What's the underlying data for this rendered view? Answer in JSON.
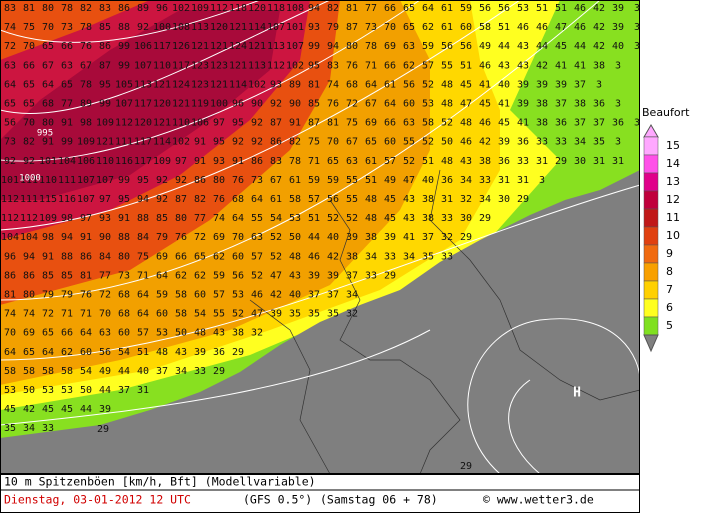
{
  "grid": {
    "rows": [
      [
        83,
        81,
        80,
        78,
        82,
        83,
        86,
        89,
        96,
        102,
        109,
        112,
        118,
        120,
        118,
        108,
        94,
        82,
        81,
        77,
        66,
        65,
        64,
        61,
        59,
        56,
        56,
        53,
        51,
        51,
        46,
        42,
        39,
        3
      ],
      [
        74,
        75,
        70,
        73,
        78,
        85,
        88,
        92,
        100,
        108,
        113,
        120,
        121,
        114,
        107,
        101,
        93,
        79,
        87,
        73,
        70,
        65,
        62,
        61,
        60,
        58,
        51,
        46,
        46,
        47,
        46,
        42,
        39,
        3
      ],
      [
        72,
        70,
        65,
        66,
        76,
        86,
        99,
        106,
        117,
        126,
        121,
        121,
        124,
        121,
        113,
        107,
        99,
        94,
        80,
        78,
        69,
        63,
        59,
        56,
        56,
        49,
        44,
        43,
        44,
        45,
        44,
        42,
        40,
        3
      ],
      [
        63,
        66,
        67,
        63,
        67,
        87,
        99,
        107,
        110,
        117,
        123,
        123,
        121,
        113,
        112,
        102,
        95,
        83,
        76,
        71,
        66,
        62,
        57,
        55,
        51,
        46,
        43,
        43,
        42,
        41,
        41,
        38,
        3
      ],
      [
        64,
        65,
        64,
        65,
        78,
        95,
        105,
        113,
        121,
        124,
        123,
        121,
        114,
        102,
        93,
        89,
        81,
        74,
        68,
        64,
        61,
        56,
        52,
        48,
        45,
        41,
        40,
        39,
        39,
        39,
        37,
        3
      ],
      [
        65,
        65,
        68,
        77,
        89,
        99,
        107,
        117,
        120,
        121,
        119,
        100,
        96,
        90,
        92,
        90,
        85,
        76,
        72,
        67,
        64,
        60,
        53,
        48,
        47,
        45,
        41,
        39,
        38,
        37,
        38,
        36,
        3
      ],
      [
        56,
        70,
        80,
        91,
        98,
        109,
        112,
        120,
        121,
        110,
        106,
        97,
        95,
        92,
        87,
        91,
        87,
        81,
        75,
        69,
        66,
        63,
        58,
        52,
        48,
        46,
        45,
        41,
        38,
        36,
        37,
        37,
        36,
        3
      ],
      [
        73,
        82,
        91,
        99,
        109,
        121,
        111,
        117,
        114,
        102,
        91,
        95,
        92,
        92,
        86,
        82,
        75,
        70,
        67,
        65,
        60,
        55,
        52,
        50,
        46,
        42,
        39,
        36,
        33,
        33,
        34,
        35,
        3
      ],
      [
        92,
        92,
        101,
        104,
        106,
        110,
        116,
        117,
        109,
        97,
        91,
        93,
        91,
        86,
        83,
        78,
        71,
        65,
        63,
        61,
        57,
        52,
        51,
        48,
        43,
        38,
        36,
        33,
        31,
        29,
        30,
        31,
        31
      ],
      [
        101,
        111,
        110,
        111,
        107,
        107,
        99,
        95,
        92,
        92,
        86,
        80,
        76,
        73,
        67,
        61,
        59,
        59,
        55,
        51,
        49,
        47,
        40,
        36,
        34,
        33,
        31,
        31,
        3
      ],
      [
        112,
        111,
        115,
        116,
        107,
        97,
        95,
        94,
        92,
        87,
        82,
        76,
        68,
        64,
        61,
        58,
        57,
        56,
        55,
        48,
        45,
        43,
        38,
        31,
        32,
        34,
        30,
        29
      ],
      [
        112,
        112,
        109,
        98,
        97,
        93,
        91,
        88,
        85,
        80,
        77,
        74,
        64,
        55,
        54,
        53,
        51,
        52,
        52,
        48,
        45,
        43,
        38,
        33,
        30,
        29
      ],
      [
        104,
        104,
        98,
        94,
        91,
        90,
        88,
        84,
        79,
        76,
        72,
        69,
        70,
        63,
        52,
        50,
        44,
        40,
        39,
        38,
        39,
        41,
        37,
        32,
        29
      ],
      [
        96,
        94,
        91,
        88,
        86,
        84,
        80,
        75,
        69,
        66,
        65,
        62,
        60,
        57,
        52,
        48,
        46,
        42,
        38,
        34,
        33,
        34,
        35,
        33
      ],
      [
        86,
        86,
        85,
        85,
        81,
        77,
        73,
        71,
        64,
        62,
        62,
        59,
        56,
        52,
        47,
        43,
        39,
        39,
        37,
        33,
        29
      ],
      [
        81,
        80,
        79,
        79,
        76,
        72,
        68,
        64,
        59,
        58,
        60,
        57,
        53,
        46,
        42,
        40,
        37,
        37,
        34
      ],
      [
        74,
        74,
        72,
        71,
        71,
        70,
        68,
        64,
        60,
        58,
        54,
        55,
        52,
        47,
        39,
        35,
        35,
        35,
        32
      ],
      [
        70,
        69,
        65,
        66,
        64,
        63,
        60,
        57,
        53,
        50,
        48,
        43,
        38,
        32
      ],
      [
        64,
        65,
        64,
        62,
        60,
        56,
        54,
        51,
        48,
        43,
        39,
        36,
        29
      ],
      [
        58,
        58,
        58,
        58,
        54,
        49,
        44,
        40,
        37,
        34,
        33,
        29
      ],
      [
        53,
        50,
        53,
        53,
        50,
        44,
        37,
        31
      ],
      [
        45,
        42,
        45,
        45,
        44,
        39
      ],
      [
        35,
        34,
        33
      ]
    ]
  },
  "labels": [
    {
      "text": "29"
    },
    {
      "text": "29"
    },
    {
      "text": "995"
    },
    {
      "text": "1000"
    },
    {
      "text": "H"
    }
  ],
  "legend": {
    "title": "Beaufort",
    "levels": [
      {
        "label": 15,
        "color": "#ffa8ff"
      },
      {
        "label": 14,
        "color": "#ff50e8"
      },
      {
        "label": 13,
        "color": "#e0008a"
      },
      {
        "label": 12,
        "color": "#c0003c"
      },
      {
        "label": 11,
        "color": "#c01818"
      },
      {
        "label": 10,
        "color": "#e04010"
      },
      {
        "label": 9,
        "color": "#f06a10"
      },
      {
        "label": 8,
        "color": "#f8a000"
      },
      {
        "label": 7,
        "color": "#ffd000"
      },
      {
        "label": 6,
        "color": "#ffff20"
      },
      {
        "label": 5,
        "color": "#80e020"
      }
    ]
  },
  "footer": {
    "variable": "10 m Spitzenböen [km/h, Bft] (Modellvariable)",
    "date": "Dienstag, 03-01-2012  12 UTC",
    "model": "(GFS 0.5°)",
    "run": "(Samstag 06 + 78)",
    "source": "© www.wetter3.de"
  }
}
